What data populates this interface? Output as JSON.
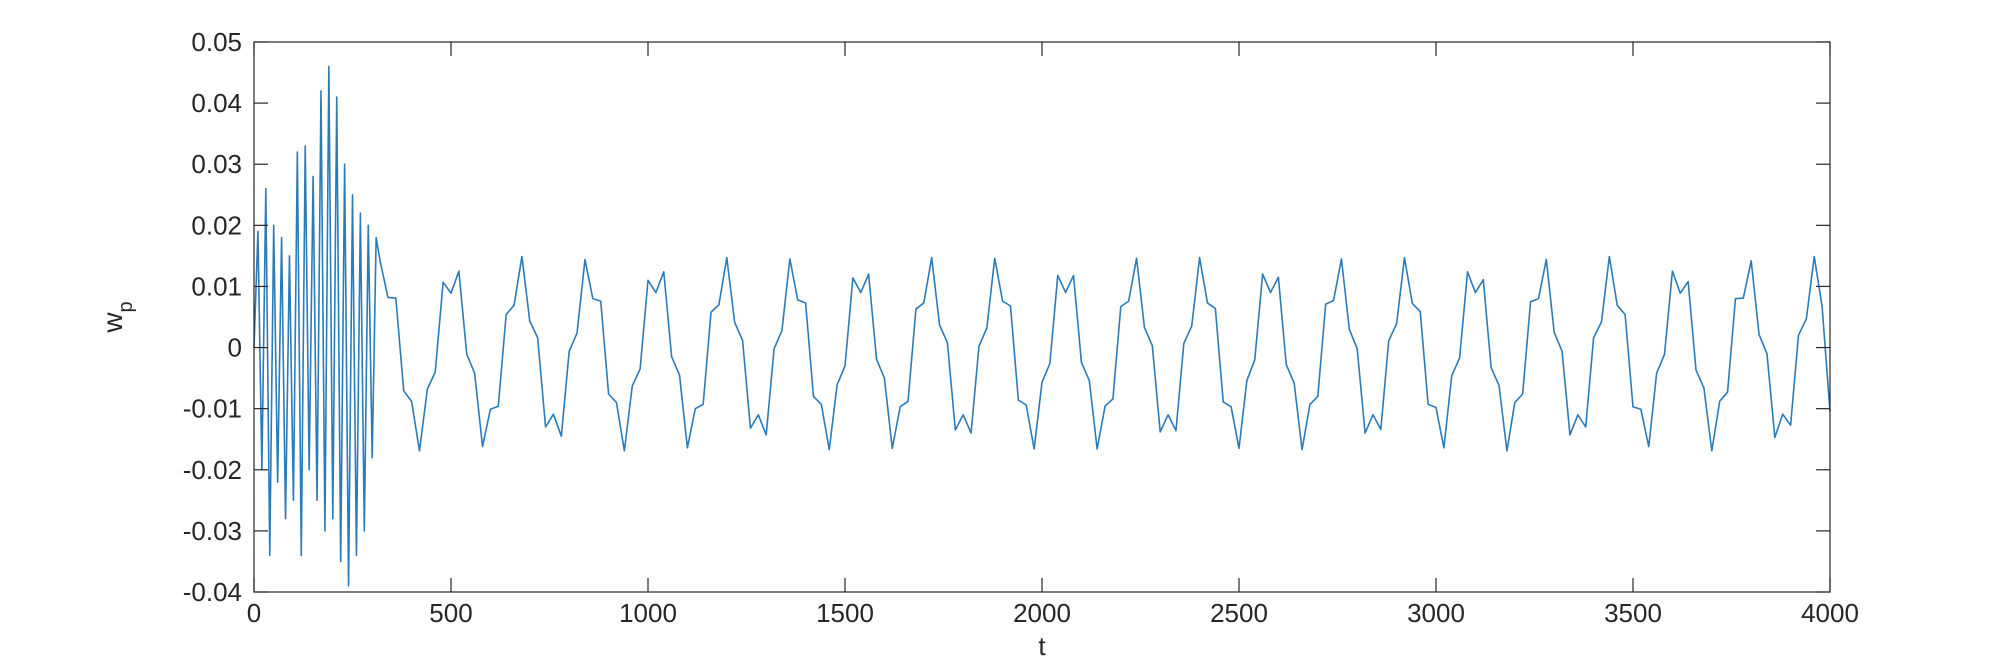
{
  "chart_data": {
    "type": "line",
    "xlabel": "t",
    "ylabel_base": "w",
    "ylabel_sub": "p",
    "xlim": [
      0,
      4000
    ],
    "ylim": [
      -0.04,
      0.05
    ],
    "xticks": [
      0,
      500,
      1000,
      1500,
      2000,
      2500,
      3000,
      3500,
      4000
    ],
    "yticks": [
      -0.04,
      -0.03,
      -0.02,
      -0.01,
      0,
      0.01,
      0.02,
      0.03,
      0.04,
      0.05
    ],
    "grid": false,
    "series": [
      {
        "color": "#2b7bb9",
        "x": [
          0,
          10,
          20,
          30,
          40,
          50,
          60,
          70,
          80,
          90,
          100,
          110,
          120,
          130,
          140,
          150,
          160,
          170,
          180,
          190,
          200,
          210,
          220,
          230,
          240,
          250,
          260,
          270,
          280,
          290,
          300,
          310,
          320,
          340,
          360,
          380,
          400,
          420,
          440,
          460,
          480,
          500,
          520,
          540,
          560,
          580,
          600,
          620,
          640,
          660,
          680,
          700,
          720,
          740,
          760,
          780,
          800,
          820,
          840,
          860,
          880,
          900,
          920,
          940,
          960,
          980,
          1000,
          1020,
          1040,
          1060,
          1080,
          1100,
          1120,
          1140,
          1160,
          1180,
          1200,
          1220,
          1240,
          1260,
          1280,
          1300,
          1320,
          1340,
          1360,
          1380,
          1400,
          1420,
          1440,
          1460,
          1480,
          1500,
          1520,
          1540,
          1560,
          1580,
          1600,
          1620,
          1640,
          1660,
          1680,
          1700,
          1720,
          1740,
          1760,
          1780,
          1800,
          1820,
          1840,
          1860,
          1880,
          1900,
          1920,
          1940,
          1960,
          1980,
          2000,
          2020,
          2040,
          2060,
          2080,
          2100,
          2120,
          2140,
          2160,
          2180,
          2200,
          2220,
          2240,
          2260,
          2280,
          2300,
          2320,
          2340,
          2360,
          2380,
          2400,
          2420,
          2440,
          2460,
          2480,
          2500,
          2520,
          2540,
          2560,
          2580,
          2600,
          2620,
          2640,
          2660,
          2680,
          2700,
          2720,
          2740,
          2760,
          2780,
          2800,
          2820,
          2840,
          2860,
          2880,
          2900,
          2920,
          2940,
          2960,
          2980,
          3000,
          3020,
          3040,
          3060,
          3080,
          3100,
          3120,
          3140,
          3160,
          3180,
          3200,
          3220,
          3240,
          3260,
          3280,
          3300,
          3320,
          3340,
          3360,
          3380,
          3400,
          3420,
          3440,
          3460,
          3480,
          3500,
          3520,
          3540,
          3560,
          3580,
          3600,
          3620,
          3640,
          3660,
          3680,
          3700,
          3720,
          3740,
          3760,
          3780,
          3800,
          3820,
          3840,
          3860,
          3880,
          3900,
          3920,
          3940,
          3960,
          3980,
          4000
        ],
        "values": [
          0,
          0.019,
          -0.02,
          0.026,
          -0.034,
          0.02,
          -0.022,
          0.018,
          -0.028,
          0.015,
          -0.025,
          0.032,
          -0.034,
          0.033,
          -0.02,
          0.028,
          -0.025,
          0.042,
          -0.03,
          0.046,
          -0.028,
          0.041,
          -0.035,
          0.03,
          -0.039,
          0.025,
          -0.034,
          0.022,
          -0.03,
          0.02,
          -0.018,
          0.018,
          0.0142,
          0.0082,
          0.0081,
          -0.0071,
          -0.0088,
          -0.0169,
          -0.0068,
          -0.004,
          0.0107,
          0.0089,
          0.0125,
          -0.0011,
          -0.0042,
          -0.0162,
          -0.0101,
          -0.0096,
          0.0054,
          0.0069,
          0.0149,
          0.0043,
          0.0016,
          -0.013,
          -0.0109,
          -0.0145,
          -0.0006,
          0.0024,
          0.0144,
          0.008,
          0.0076,
          -0.0076,
          -0.009,
          -0.0169,
          -0.0063,
          -0.0035,
          0.011,
          0.009,
          0.0124,
          -0.0015,
          -0.0045,
          -0.0164,
          -0.01,
          -0.0093,
          0.0058,
          0.007,
          0.0147,
          0.0041,
          0.0012,
          -0.0132,
          -0.011,
          -0.0143,
          -0.0002,
          0.0028,
          0.0145,
          0.0078,
          0.0073,
          -0.008,
          -0.0093,
          -0.0167,
          -0.0061,
          -0.003,
          0.0114,
          0.009,
          0.012,
          -0.0019,
          -0.005,
          -0.0165,
          -0.0097,
          -0.0088,
          0.0063,
          0.0073,
          0.0147,
          0.0037,
          0.0008,
          -0.0135,
          -0.011,
          -0.014,
          0.0002,
          0.0032,
          0.0146,
          0.0076,
          0.0068,
          -0.0086,
          -0.0094,
          -0.0166,
          -0.0057,
          -0.0026,
          0.0118,
          0.009,
          0.0118,
          -0.0024,
          -0.0054,
          -0.0166,
          -0.0096,
          -0.0084,
          0.0067,
          0.0076,
          0.0146,
          0.0033,
          0.0003,
          -0.0138,
          -0.011,
          -0.0136,
          0.0007,
          0.0035,
          0.0147,
          0.0073,
          0.0064,
          -0.0089,
          -0.0097,
          -0.0165,
          -0.0054,
          -0.002,
          0.012,
          0.009,
          0.0115,
          -0.0028,
          -0.0058,
          -0.0167,
          -0.0093,
          -0.008,
          0.0071,
          0.0077,
          0.0145,
          0.003,
          -0.0002,
          -0.014,
          -0.011,
          -0.0134,
          0.0011,
          0.0039,
          0.0147,
          0.0072,
          0.0059,
          -0.0093,
          -0.0098,
          -0.0164,
          -0.0046,
          -0.0017,
          0.0124,
          0.009,
          0.0111,
          -0.0033,
          -0.0062,
          -0.0169,
          -0.009,
          -0.0076,
          0.0075,
          0.008,
          0.0144,
          0.0025,
          -0.0006,
          -0.0143,
          -0.011,
          -0.013,
          0.0016,
          0.0042,
          0.0149,
          0.0069,
          0.0054,
          -0.0097,
          -0.0101,
          -0.0162,
          -0.0042,
          -0.0011,
          0.0125,
          0.0089,
          0.0108,
          -0.0037,
          -0.0066,
          -0.0169,
          -0.0088,
          -0.0073,
          0.008,
          0.0081,
          0.0142,
          0.0021,
          -0.001,
          -0.0147,
          -0.0109,
          -0.0127,
          0.002,
          0.0047,
          0.0149,
          0.0067,
          -0.0105
        ]
      }
    ]
  }
}
